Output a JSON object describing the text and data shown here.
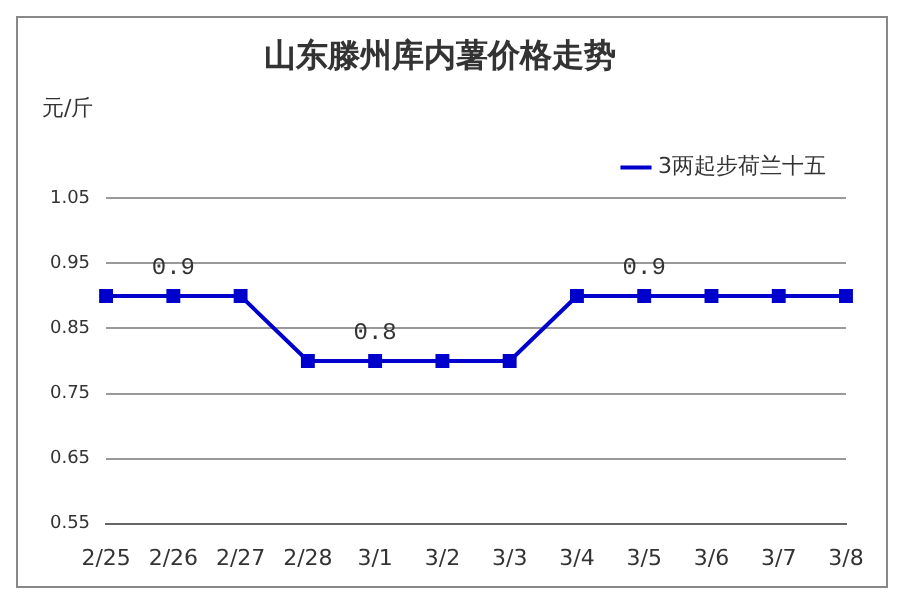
{
  "chart_data": {
    "type": "line",
    "title": "山东滕州库内薯价格走势",
    "ylabel": "元/斤",
    "categories": [
      "2/25",
      "2/26",
      "2/27",
      "2/28",
      "3/1",
      "3/2",
      "3/3",
      "3/4",
      "3/5",
      "3/6",
      "3/7",
      "3/8"
    ],
    "series": [
      {
        "name": "3两起步荷兰十五",
        "color": "#0000cc",
        "values": [
          0.9,
          0.9,
          0.9,
          0.8,
          0.8,
          0.8,
          0.8,
          0.9,
          0.9,
          0.9,
          0.9,
          0.9
        ],
        "value_labels": [
          null,
          "0.9",
          null,
          null,
          "0.8",
          null,
          null,
          null,
          "0.9",
          null,
          null,
          null
        ]
      }
    ],
    "ylim": [
      0.55,
      1.05
    ],
    "yticks": [
      0.55,
      0.65,
      0.75,
      0.85,
      0.95,
      1.05
    ],
    "grid": "y",
    "legend": "top right",
    "marker": "square",
    "line_style": "solid"
  }
}
